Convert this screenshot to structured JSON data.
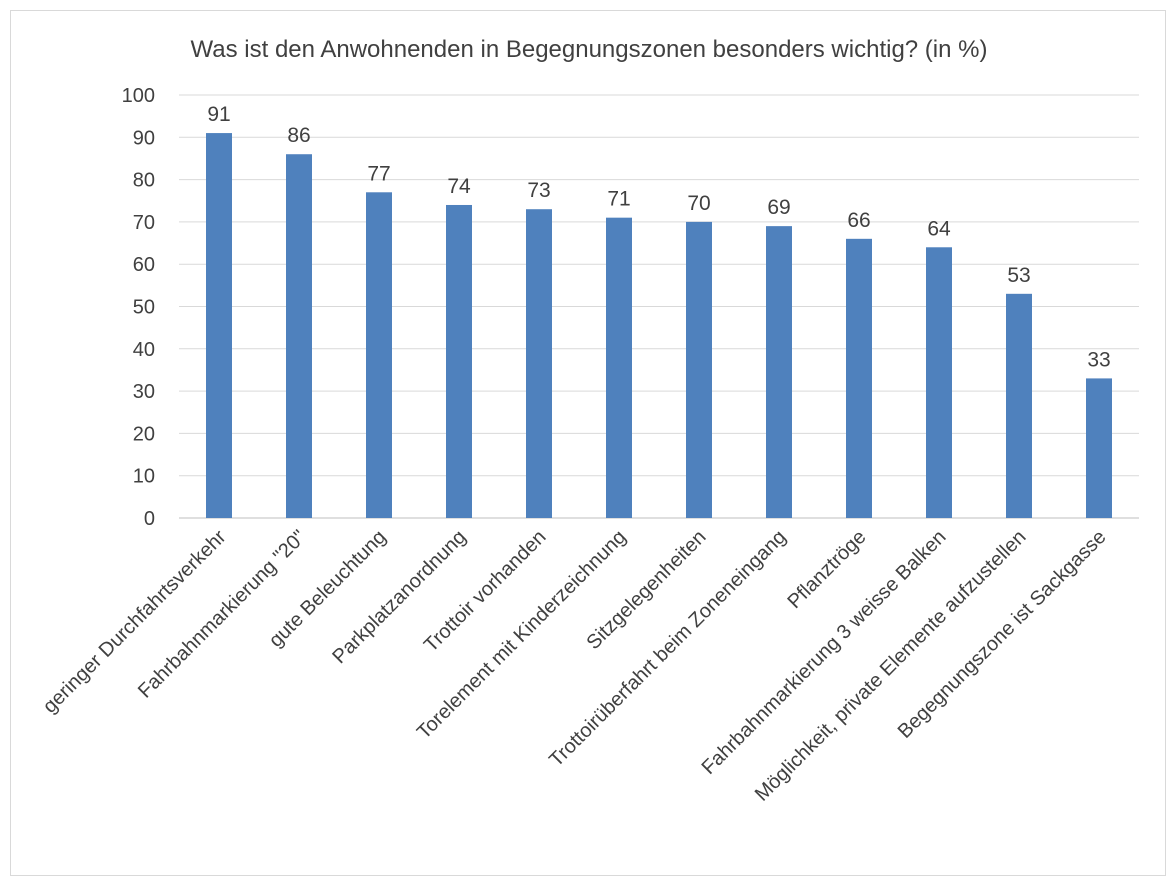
{
  "chart_data": {
    "type": "bar",
    "title": "Was ist den Anwohnenden in Begegnungszonen besonders wichtig? (in %)",
    "xlabel": "",
    "ylabel": "",
    "categories": [
      "geringer Durchfahrtsverkehr",
      "Fahrbahnmarkierung \"20\"",
      "gute Beleuchtung",
      "Parkplatzanordnung",
      "Trottoir vorhanden",
      "Torelement mit Kinderzeichnung",
      "Sitzgelegenheiten",
      "Trottoirüberfahrt beim Zoneneingang",
      "Pflanztröge",
      "Fahrbahnmarkierung 3 weisse Balken",
      "Möglichkeit, private Elemente aufzustellen",
      "Begegnungszone ist Sackgasse"
    ],
    "values": [
      91,
      86,
      77,
      74,
      73,
      71,
      70,
      69,
      66,
      64,
      53,
      33
    ],
    "ylim": [
      0,
      100
    ],
    "yticks": [
      0,
      10,
      20,
      30,
      40,
      50,
      60,
      70,
      80,
      90,
      100
    ],
    "grid": true,
    "legend": "none",
    "bar_color": "#4f81bd"
  }
}
